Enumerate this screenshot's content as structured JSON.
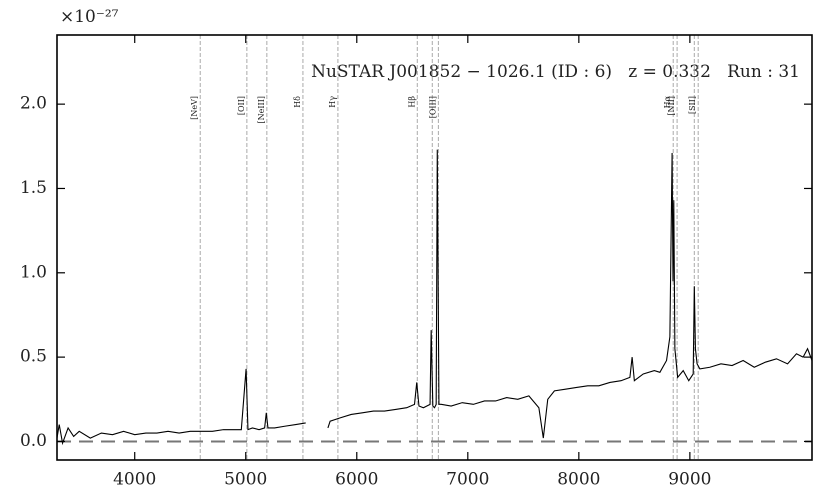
{
  "chart_data": {
    "type": "line",
    "title": "NuSTAR J001852 − 1026.1 (ID : 6)   z = 0.332   Run : 31",
    "y_multiplier": "×10⁻²⁷",
    "color": "#000000",
    "x": [
      3300,
      3320,
      3350,
      3400,
      3450,
      3500,
      3600,
      3700,
      3800,
      3900,
      4000,
      4100,
      4200,
      4300,
      4400,
      4500,
      4600,
      4700,
      4800,
      4900,
      4960,
      5003,
      5020,
      5060,
      5120,
      5170,
      5185,
      5200,
      5260,
      5350,
      5450,
      5540,
      5640,
      5740,
      5760,
      5850,
      5950,
      6050,
      6150,
      6250,
      6350,
      6450,
      6520,
      6540,
      6560,
      6600,
      6660,
      6670,
      6685,
      6700,
      6715,
      6725,
      6740,
      6760,
      6850,
      6950,
      7050,
      7150,
      7250,
      7350,
      7450,
      7550,
      7640,
      7680,
      7720,
      7780,
      7880,
      7980,
      8080,
      8180,
      8280,
      8380,
      8460,
      8480,
      8500,
      8580,
      8680,
      8730,
      8790,
      8820,
      8840,
      8848,
      8855,
      8865,
      8890,
      8940,
      8990,
      9030,
      9040,
      9050,
      9065,
      9090,
      9180,
      9280,
      9380,
      9480,
      9580,
      9680,
      9780,
      9880,
      9960,
      10020,
      10060,
      10100
    ],
    "values": [
      0.02,
      0.1,
      -0.01,
      0.08,
      0.03,
      0.06,
      0.02,
      0.05,
      0.04,
      0.06,
      0.04,
      0.05,
      0.05,
      0.06,
      0.05,
      0.06,
      0.06,
      0.06,
      0.07,
      0.07,
      0.07,
      0.43,
      0.07,
      0.08,
      0.07,
      0.08,
      0.17,
      0.08,
      0.08,
      0.09,
      0.1,
      0.11,
      null,
      0.08,
      0.12,
      0.14,
      0.16,
      0.17,
      0.18,
      0.18,
      0.19,
      0.2,
      0.22,
      0.35,
      0.21,
      0.2,
      0.22,
      0.66,
      0.21,
      0.2,
      0.22,
      1.73,
      0.22,
      0.22,
      0.21,
      0.23,
      0.22,
      0.24,
      0.24,
      0.26,
      0.25,
      0.27,
      0.2,
      0.02,
      0.25,
      0.3,
      0.31,
      0.32,
      0.33,
      0.33,
      0.35,
      0.36,
      0.38,
      0.5,
      0.36,
      0.4,
      0.42,
      0.41,
      0.48,
      0.62,
      1.71,
      0.95,
      1.43,
      0.55,
      0.38,
      0.42,
      0.36,
      0.4,
      0.92,
      0.55,
      0.46,
      0.43,
      0.44,
      0.46,
      0.45,
      0.48,
      0.44,
      0.47,
      0.49,
      0.46,
      0.52,
      0.5,
      0.55,
      0.48
    ],
    "reference_line": 0,
    "lines": [
      {
        "label": "[NeV]",
        "x": 4590
      },
      {
        "label": "[OII]",
        "x": 5010
      },
      {
        "label": "[NeIII]",
        "x": 5190
      },
      {
        "label": "Hδ",
        "x": 5515
      },
      {
        "label": "Hγ",
        "x": 5830
      },
      {
        "label": "Hβ",
        "x": 6545
      },
      {
        "x": 6680
      },
      {
        "label": "[OIII]",
        "x": 6735
      },
      {
        "label": "Hα",
        "x": 8850
      },
      {
        "label": "[NII]",
        "x": 8885
      },
      {
        "x": 9040
      },
      {
        "label": "[SII]",
        "x": 9075
      }
    ],
    "xlim": [
      3300,
      10100
    ],
    "ylim": [
      -0.11,
      2.41
    ],
    "xticks": [
      4000,
      5000,
      6000,
      7000,
      8000,
      9000
    ],
    "yticks": [
      {
        "value": 0,
        "label": "0.0"
      },
      {
        "value": 0.5,
        "label": "0.5"
      },
      {
        "value": 1,
        "label": "1.0"
      },
      {
        "value": 1.5,
        "label": "1.5"
      },
      {
        "value": 2,
        "label": "2.0"
      }
    ]
  }
}
